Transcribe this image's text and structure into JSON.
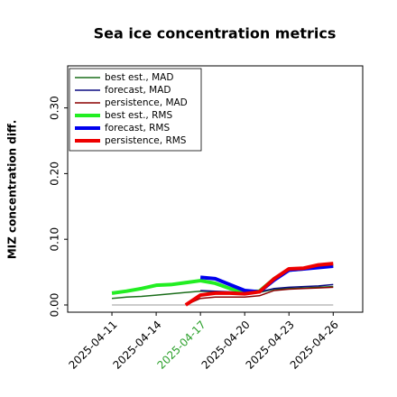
{
  "chart_data": {
    "type": "line",
    "title": "Sea ice concentration metrics",
    "ylabel": "MIZ concentration diff.",
    "x": [
      "2025-04-11",
      "2025-04-12",
      "2025-04-13",
      "2025-04-14",
      "2025-04-15",
      "2025-04-16",
      "2025-04-17",
      "2025-04-18",
      "2025-04-19",
      "2025-04-20",
      "2025-04-21",
      "2025-04-22",
      "2025-04-23",
      "2025-04-24",
      "2025-04-25",
      "2025-04-26"
    ],
    "xlim": [
      "2025-04-08",
      "2025-04-28"
    ],
    "xticks": [
      "2025-04-11",
      "2025-04-14",
      "2025-04-17",
      "2025-04-20",
      "2025-04-23",
      "2025-04-26"
    ],
    "xtick_colors": [
      "#000000",
      "#000000",
      "#2ca02c",
      "#000000",
      "#000000",
      "#000000"
    ],
    "ylim": [
      -0.011,
      0.364
    ],
    "yticks": [
      {
        "value": 0,
        "label": "0.00"
      },
      {
        "value": 0.1,
        "label": "0.10"
      },
      {
        "value": 0.2,
        "label": "0.20"
      },
      {
        "value": 0.3,
        "label": "0.30"
      }
    ],
    "zero_line": {
      "y": 0,
      "x": [
        "2025-04-11",
        "2025-04-26"
      ],
      "color": "#999999"
    },
    "legend": "upper left",
    "series": [
      {
        "name": "best est., MAD",
        "color": "#1b6e1b",
        "width": 1.5,
        "values": [
          0.01,
          0.012,
          0.013,
          0.015,
          0.017,
          0.019,
          0.021,
          0.02,
          0.018,
          0.017,
          0.019,
          0.024,
          0.025,
          0.026,
          0.027,
          0.028
        ]
      },
      {
        "name": "forecast,  MAD",
        "color": "#0a0a80",
        "width": 1.5,
        "values": [
          null,
          null,
          null,
          null,
          null,
          null,
          0.022,
          0.021,
          0.02,
          0.019,
          0.02,
          0.025,
          0.027,
          0.028,
          0.029,
          0.031
        ]
      },
      {
        "name": "persistence, MAD",
        "color": "#8b0000",
        "width": 1.5,
        "values": [
          null,
          null,
          null,
          null,
          null,
          0.0,
          0.01,
          0.012,
          0.012,
          0.012,
          0.014,
          0.022,
          0.024,
          0.025,
          0.026,
          0.027
        ]
      },
      {
        "name": "best est., RMS",
        "color": "#22ee22",
        "width": 4,
        "values": [
          0.018,
          0.021,
          0.025,
          0.03,
          0.031,
          0.034,
          0.037,
          0.033,
          0.025,
          0.02,
          0.021,
          0.04,
          0.053,
          0.055,
          0.059,
          0.061
        ]
      },
      {
        "name": "forecast,  RMS",
        "color": "#0000ee",
        "width": 4,
        "values": [
          null,
          null,
          null,
          null,
          null,
          null,
          0.042,
          0.04,
          0.031,
          0.022,
          0.02,
          0.038,
          0.053,
          0.055,
          0.057,
          0.059
        ]
      },
      {
        "name": "persistence, RMS",
        "color": "#ee0000",
        "width": 4,
        "values": [
          null,
          null,
          null,
          null,
          null,
          0.0,
          0.015,
          0.018,
          0.018,
          0.017,
          0.02,
          0.04,
          0.055,
          0.056,
          0.061,
          0.063
        ]
      }
    ]
  }
}
